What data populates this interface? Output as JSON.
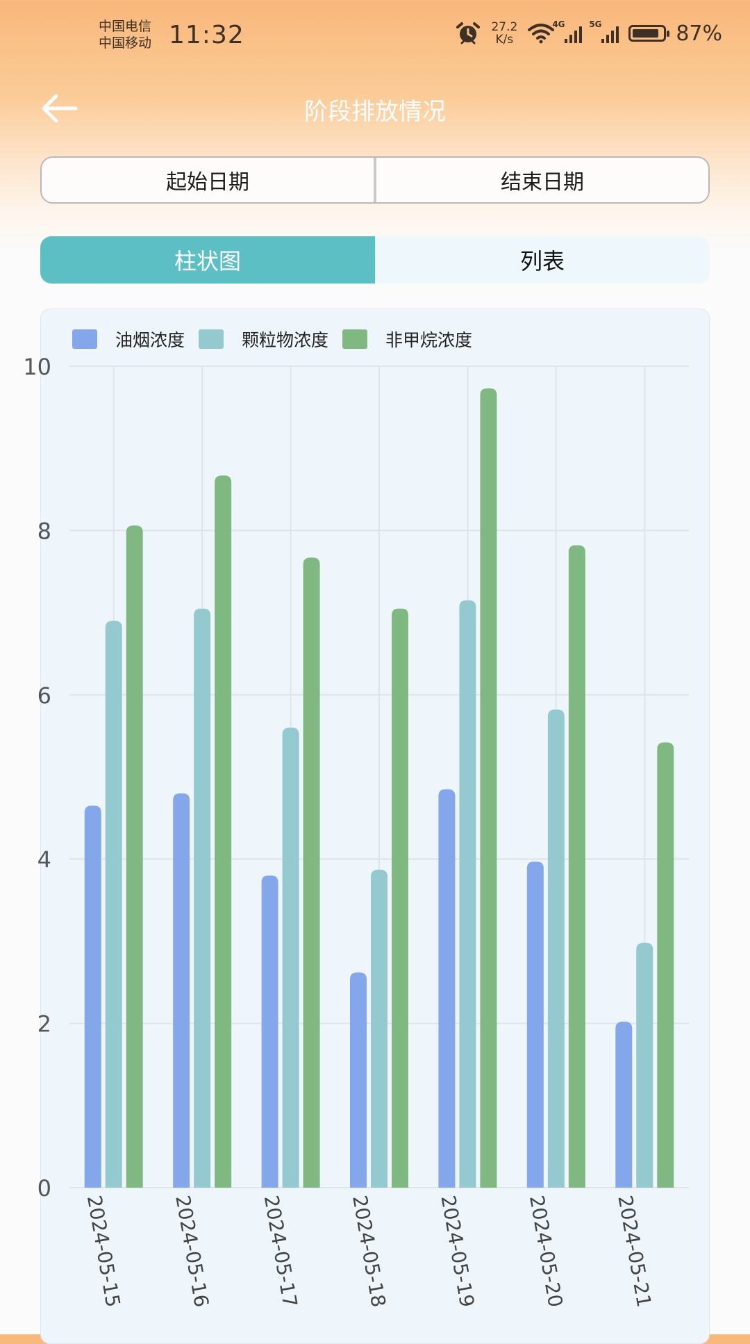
{
  "status_bar": {
    "carrier_1": "中国电信",
    "carrier_2": "中国移动",
    "time": "11:32",
    "speed_value": "27.2",
    "speed_unit": "K/s",
    "net_1": "4G",
    "net_2": "5G",
    "battery": "87%",
    "battery_level": 0.87,
    "icons": [
      "alarm-icon",
      "wifi-icon",
      "signal-4g-icon",
      "signal-5g-icon",
      "battery-icon"
    ]
  },
  "header": {
    "title": "阶段排放情况",
    "back_icon": "arrow-left-icon"
  },
  "date_range": {
    "start_label": "起始日期",
    "end_label": "结束日期"
  },
  "view_tabs": {
    "tabs": [
      {
        "label": "柱状图",
        "active": true
      },
      {
        "label": "列表",
        "active": false
      }
    ]
  },
  "colors": {
    "accent": "#5bbfc3",
    "series": [
      "#84a6ea",
      "#93c9cf",
      "#7fb880"
    ]
  },
  "chart_data": {
    "type": "bar",
    "categories": [
      "2024-05-15",
      "2024-05-16",
      "2024-05-17",
      "2024-05-18",
      "2024-05-19",
      "2024-05-20",
      "2024-05-21"
    ],
    "series": [
      {
        "name": "油烟浓度",
        "values": [
          4.65,
          4.8,
          3.8,
          2.62,
          4.85,
          3.97,
          2.02
        ]
      },
      {
        "name": "颗粒物浓度",
        "values": [
          6.9,
          7.05,
          5.6,
          3.87,
          7.15,
          5.82,
          2.98
        ]
      },
      {
        "name": "非甲烷浓度",
        "values": [
          8.06,
          8.67,
          7.67,
          7.05,
          9.73,
          7.82,
          5.42
        ]
      }
    ],
    "yticks": [
      0,
      2,
      4,
      6,
      8,
      10
    ],
    "ylim": [
      0,
      10
    ],
    "legend_position": "top-left",
    "grid": true,
    "xlabel": "",
    "ylabel": ""
  }
}
